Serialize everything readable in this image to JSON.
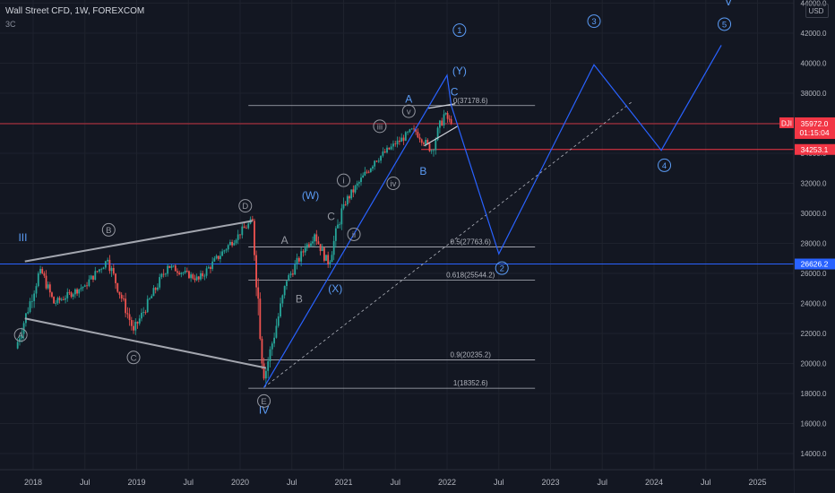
{
  "header": {
    "symbol_line": "Wall Street CFD, 1W, FOREXCOM",
    "indicator": "3C",
    "currency": "USD"
  },
  "colors": {
    "background": "#131722",
    "up": "#26a69a",
    "down": "#ef5350",
    "wave": "#2962ff",
    "wave_label": "#5b9cf6",
    "fib": "#b2b5be",
    "marker": "#9598a1",
    "price_tag": "#f23645"
  },
  "chart_data": {
    "type": "candlestick",
    "x_ticks": [
      "2018",
      "Jul",
      "2019",
      "Jul",
      "2020",
      "Jul",
      "2021",
      "Jul",
      "2022",
      "Jul",
      "2023",
      "Jul",
      "2024",
      "Jul",
      "2025"
    ],
    "y_ticks": [
      "44000.0",
      "42000.0",
      "40000.0",
      "38000.0",
      "36000.0",
      "34000.0",
      "32000.0",
      "30000.0",
      "28000.0",
      "26000.0",
      "24000.0",
      "22000.0",
      "20000.0",
      "18000.0",
      "16000.0",
      "14000.0"
    ],
    "ylim": [
      12800,
      44300
    ],
    "current_price": {
      "symbol": "DJI",
      "value": "35972.0",
      "countdown": "01:15:04",
      "y": 35972
    },
    "price_tags": [
      {
        "label": "34253.1",
        "y": 34253.1,
        "color": "#f23645"
      },
      {
        "label": "26626.2",
        "y": 26626.2,
        "color": "#2962ff"
      }
    ],
    "fib_levels": [
      {
        "label": "0(37178.6)",
        "y": 37178.6,
        "x_start": 2020.08,
        "x_end": 2022.85
      },
      {
        "label": "0.5(27763.6)",
        "y": 27763.6,
        "x_start": 2020.08,
        "x_end": 2022.85
      },
      {
        "label": "0.618(25544.2)",
        "y": 25544.2,
        "x_start": 2020.08,
        "x_end": 2022.85
      },
      {
        "label": "0.9(20235.2)",
        "y": 20235.2,
        "x_start": 2020.08,
        "x_end": 2022.85
      },
      {
        "label": "1(18352.6)",
        "y": 18352.6,
        "x_start": 2020.08,
        "x_end": 2022.85
      }
    ],
    "anchors": [
      {
        "x": 2017.83,
        "y": 21000
      },
      {
        "x": 2018.07,
        "y": 26300
      },
      {
        "x": 2018.2,
        "y": 24000
      },
      {
        "x": 2018.5,
        "y": 25200
      },
      {
        "x": 2018.72,
        "y": 26900
      },
      {
        "x": 2018.97,
        "y": 22200
      },
      {
        "x": 2019.3,
        "y": 26500
      },
      {
        "x": 2019.6,
        "y": 25600
      },
      {
        "x": 2019.98,
        "y": 28600
      },
      {
        "x": 2020.12,
        "y": 29500
      },
      {
        "x": 2020.23,
        "y": 19000
      },
      {
        "x": 2020.45,
        "y": 25500
      },
      {
        "x": 2020.63,
        "y": 27700
      },
      {
        "x": 2020.72,
        "y": 28600
      },
      {
        "x": 2020.85,
        "y": 26600
      },
      {
        "x": 2021.0,
        "y": 30600
      },
      {
        "x": 2021.3,
        "y": 33500
      },
      {
        "x": 2021.5,
        "y": 34600
      },
      {
        "x": 2021.68,
        "y": 35600
      },
      {
        "x": 2021.85,
        "y": 34200
      },
      {
        "x": 2021.97,
        "y": 36600
      },
      {
        "x": 2022.04,
        "y": 35972
      }
    ],
    "support_lines": [
      {
        "from": [
          2017.92,
          26800
        ],
        "to": [
          2020.12,
          29500
        ]
      },
      {
        "from": [
          2017.92,
          23000
        ],
        "to": [
          2020.25,
          19700
        ]
      }
    ],
    "wave_path": [
      [
        2020.23,
        18400
      ],
      [
        2022.0,
        39200
      ],
      [
        2022.04,
        37200
      ],
      [
        2022.5,
        27300
      ],
      [
        2023.42,
        39900
      ],
      [
        2024.07,
        34200
      ],
      [
        2024.65,
        41200
      ]
    ],
    "dashed_trend": {
      "from": [
        2020.23,
        18400
      ],
      "to": [
        2023.8,
        37500
      ]
    },
    "channel_lines": [
      {
        "from": [
          2021.78,
          34500
        ],
        "to": [
          2022.1,
          35800
        ]
      },
      {
        "from": [
          2021.82,
          37000
        ],
        "to": [
          2022.08,
          37300
        ]
      }
    ],
    "wave_labels": [
      {
        "text": "1",
        "x": 2022.12,
        "y": 42200,
        "shape": "circle",
        "color": "#5b9cf6"
      },
      {
        "text": "(Y)",
        "x": 2022.12,
        "y": 39500,
        "shape": "none",
        "color": "#5b9cf6"
      },
      {
        "text": "C",
        "x": 2022.07,
        "y": 38100,
        "shape": "none",
        "color": "#5b9cf6"
      },
      {
        "text": "A",
        "x": 2021.63,
        "y": 37600,
        "shape": "none",
        "color": "#5b9cf6"
      },
      {
        "text": "B",
        "x": 2021.77,
        "y": 32800,
        "shape": "none",
        "color": "#5b9cf6"
      },
      {
        "text": "(W)",
        "x": 2020.68,
        "y": 31200,
        "shape": "none",
        "color": "#5b9cf6"
      },
      {
        "text": "(X)",
        "x": 2020.92,
        "y": 25000,
        "shape": "none",
        "color": "#5b9cf6"
      },
      {
        "text": "2",
        "x": 2022.53,
        "y": 26350,
        "shape": "circle",
        "color": "#5b9cf6"
      },
      {
        "text": "3",
        "x": 2023.42,
        "y": 42800,
        "shape": "circle",
        "color": "#5b9cf6"
      },
      {
        "text": "4",
        "x": 2024.1,
        "y": 33200,
        "shape": "circle",
        "color": "#5b9cf6"
      },
      {
        "text": "5",
        "x": 2024.68,
        "y": 42600,
        "shape": "circle",
        "color": "#5b9cf6"
      },
      {
        "text": "V",
        "x": 2024.72,
        "y": 44100,
        "shape": "none",
        "color": "#5b9cf6"
      },
      {
        "text": "III",
        "x": 2017.9,
        "y": 28400,
        "shape": "none",
        "color": "#5b9cf6"
      },
      {
        "text": "IV",
        "x": 2020.23,
        "y": 16900,
        "shape": "none",
        "color": "#5b9cf6"
      },
      {
        "text": "A",
        "x": 2017.88,
        "y": 21900,
        "shape": "circle",
        "color": "#9598a1"
      },
      {
        "text": "B",
        "x": 2018.73,
        "y": 28900,
        "shape": "circle",
        "color": "#9598a1"
      },
      {
        "text": "C",
        "x": 2018.97,
        "y": 20400,
        "shape": "circle",
        "color": "#9598a1"
      },
      {
        "text": "D",
        "x": 2020.05,
        "y": 30500,
        "shape": "circle",
        "color": "#9598a1"
      },
      {
        "text": "E",
        "x": 2020.23,
        "y": 17500,
        "shape": "circle",
        "color": "#9598a1"
      },
      {
        "text": "A",
        "x": 2020.43,
        "y": 28200,
        "shape": "none",
        "color": "#9598a1"
      },
      {
        "text": "B",
        "x": 2020.57,
        "y": 24300,
        "shape": "none",
        "color": "#9598a1"
      },
      {
        "text": "C",
        "x": 2020.88,
        "y": 29800,
        "shape": "none",
        "color": "#9598a1"
      },
      {
        "text": "i",
        "x": 2021.0,
        "y": 32200,
        "shape": "circle",
        "color": "#9598a1"
      },
      {
        "text": "ii",
        "x": 2021.1,
        "y": 28600,
        "shape": "circle",
        "color": "#9598a1"
      },
      {
        "text": "iii",
        "x": 2021.35,
        "y": 35800,
        "shape": "circle",
        "color": "#9598a1"
      },
      {
        "text": "iv",
        "x": 2021.48,
        "y": 32000,
        "shape": "circle",
        "color": "#9598a1"
      },
      {
        "text": "v",
        "x": 2021.63,
        "y": 36800,
        "shape": "circle",
        "color": "#9598a1"
      }
    ]
  }
}
